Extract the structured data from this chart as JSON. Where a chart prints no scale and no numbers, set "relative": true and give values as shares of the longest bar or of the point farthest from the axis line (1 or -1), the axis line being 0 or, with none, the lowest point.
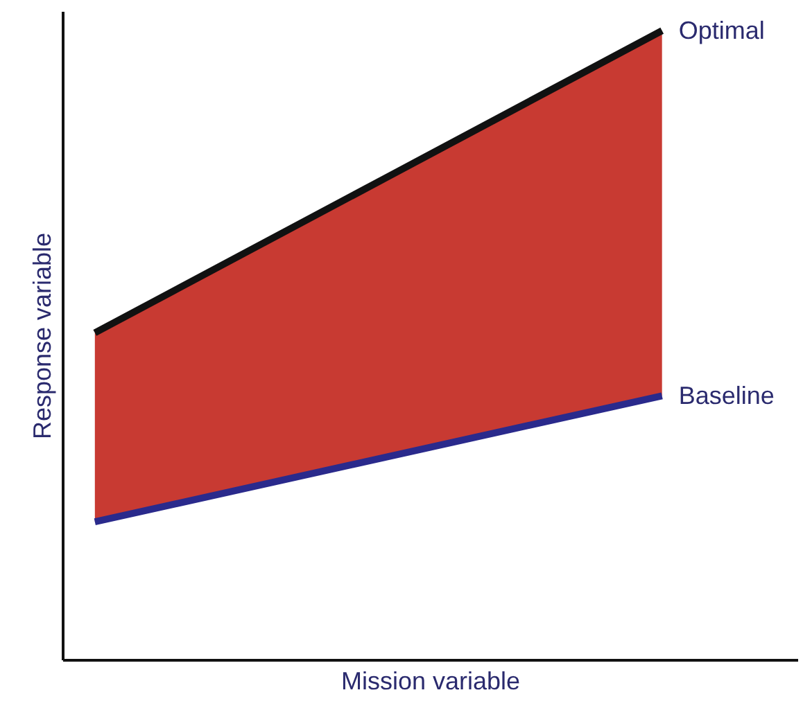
{
  "chart_data": {
    "type": "line",
    "relative": true,
    "xlabel": "Mission variable",
    "ylabel": "Response variable",
    "categories": [
      null,
      null
    ],
    "tick_labels": false,
    "marker": "none",
    "line_style": "solid",
    "series": [
      {
        "name": "Optimal",
        "color": "#111111",
        "values": [
          0.52,
          1.0
        ],
        "lower": [
          0.22,
          0.42
        ],
        "upper": [
          0.52,
          1.0
        ]
      },
      {
        "name": "Baseline",
        "color": "#2a2a8c",
        "values": [
          0.22,
          0.42
        ]
      }
    ]
  }
}
